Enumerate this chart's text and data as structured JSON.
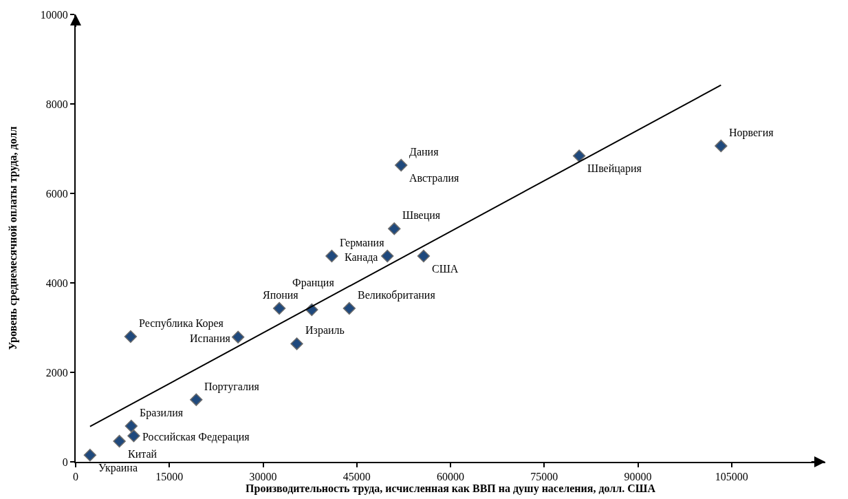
{
  "chart_data": {
    "type": "scatter",
    "xlabel": "Производительность труда, исчисленная как ВВП на душу населения, долл. США",
    "ylabel": "Уровень среднемесячной оплаты труда, долл",
    "xlim": [
      0,
      120000
    ],
    "xticks": [
      0,
      15000,
      30000,
      45000,
      60000,
      75000,
      90000,
      105000
    ],
    "ylim": [
      0,
      10000
    ],
    "yticks": [
      0,
      2000,
      4000,
      6000,
      8000,
      10000
    ],
    "grid": false,
    "marker": "diamond",
    "series": [
      {
        "color": "#1f497d",
        "x": [
          2300,
          7000,
          8900,
          9300,
          19300,
          8800,
          26000,
          35400,
          32600,
          37800,
          43800,
          41000,
          49900,
          55700,
          51000,
          52100,
          80600,
          103300
        ],
        "values": [
          150,
          460,
          800,
          580,
          1390,
          2800,
          2790,
          2640,
          3430,
          3400,
          3430,
          4600,
          4600,
          4600,
          5210,
          6630,
          6840,
          7060
        ]
      },
      {
        "type": "line",
        "marker": "none",
        "color": "#000000",
        "line_style": "solid",
        "x": [
          2300,
          103300
        ],
        "values": [
          790,
          8420
        ]
      }
    ],
    "annotations": [
      {
        "text": "Украина",
        "x": 2300,
        "y": 150
      },
      {
        "text": "Китай",
        "x": 7000,
        "y": 460
      },
      {
        "text": "Бразилия",
        "x": 8900,
        "y": 800
      },
      {
        "text": "Российская Федерация",
        "x": 9300,
        "y": 580
      },
      {
        "text": "Португалия",
        "x": 19300,
        "y": 1390
      },
      {
        "text": "Республика Корея",
        "x": 8800,
        "y": 2800
      },
      {
        "text": "Испания",
        "x": 26000,
        "y": 2790
      },
      {
        "text": "Израиль",
        "x": 35400,
        "y": 2640
      },
      {
        "text": "Япония",
        "x": 32600,
        "y": 3430
      },
      {
        "text": "Франция",
        "x": 37800,
        "y": 3400
      },
      {
        "text": "Великобритания",
        "x": 43800,
        "y": 3430
      },
      {
        "text": "Германия",
        "x": 41000,
        "y": 4600
      },
      {
        "text": "Канада",
        "x": 49900,
        "y": 4600
      },
      {
        "text": "США",
        "x": 55700,
        "y": 4600
      },
      {
        "text": "Швеция",
        "x": 51000,
        "y": 5210
      },
      {
        "text": "Дания",
        "x": 52100,
        "y": 6630
      },
      {
        "text": "Австралия",
        "x": 52100,
        "y": 6630
      },
      {
        "text": "Швейцария",
        "x": 80600,
        "y": 6840
      },
      {
        "text": "Норвегия",
        "x": 103300,
        "y": 7060
      }
    ]
  }
}
